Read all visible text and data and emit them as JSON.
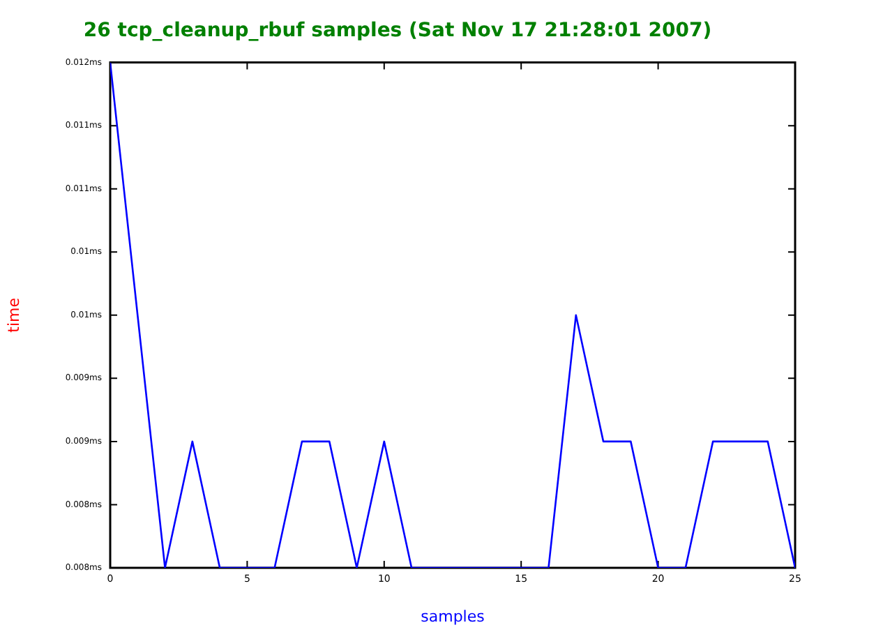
{
  "chart_data": {
    "type": "line",
    "title": "26 tcp_cleanup_rbuf samples (Sat Nov 17 21:28:01 2007)",
    "xlabel": "samples",
    "ylabel": "time",
    "x": [
      0,
      1,
      2,
      3,
      4,
      5,
      6,
      7,
      8,
      9,
      10,
      11,
      12,
      13,
      14,
      15,
      16,
      17,
      18,
      19,
      20,
      21,
      22,
      23,
      24,
      25
    ],
    "series": [
      {
        "color": "#0000ff",
        "values": [
          0.012,
          0.01,
          0.008,
          0.009,
          0.008,
          0.008,
          0.008,
          0.009,
          0.009,
          0.008,
          0.009,
          0.008,
          0.008,
          0.008,
          0.008,
          0.008,
          0.008,
          0.01,
          0.009,
          0.009,
          0.008,
          0.008,
          0.009,
          0.009,
          0.009,
          0.008
        ]
      }
    ],
    "xlim": [
      0,
      25
    ],
    "xticks": [
      0,
      5,
      10,
      15,
      20,
      25
    ],
    "ylim": [
      0.008,
      0.012
    ],
    "yticks": [
      {
        "value": 0.008,
        "label": "0.008ms"
      },
      {
        "value": 0.0085,
        "label": "0.008ms"
      },
      {
        "value": 0.009,
        "label": "0.009ms"
      },
      {
        "value": 0.0095,
        "label": "0.009ms"
      },
      {
        "value": 0.01,
        "label": "0.01ms"
      },
      {
        "value": 0.0105,
        "label": "0.01ms"
      },
      {
        "value": 0.011,
        "label": "0.011ms"
      },
      {
        "value": 0.0115,
        "label": "0.011ms"
      },
      {
        "value": 0.012,
        "label": "0.012ms"
      }
    ],
    "grid": false,
    "legend": false,
    "marker": "none",
    "line_style": "solid"
  }
}
